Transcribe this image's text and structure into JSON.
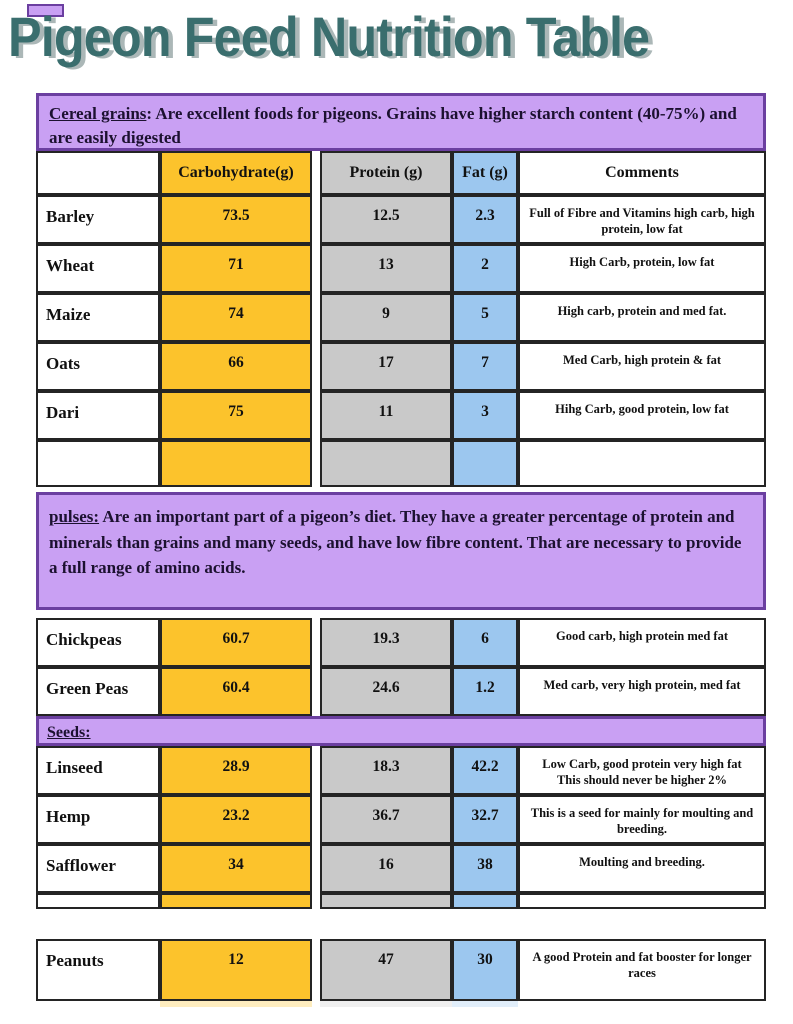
{
  "title": "Pigeon Feed Nutrition Table",
  "intro": {
    "cereal": {
      "label": "Cereal grains",
      "text": ": Are excellent foods for pigeons. Grains have higher starch content (40-75%) and are easily digested"
    },
    "pulses": {
      "label": "pulses:",
      "text": " Are an important part of a pigeon’s diet. They have a greater percentage of protein and minerals than grains and many seeds, and have low fibre content. That are necessary to provide a full range of amino acids."
    },
    "seeds": {
      "label": "Seeds:"
    }
  },
  "table": {
    "headers": {
      "food": "",
      "carb": "Carbohydrate(g)",
      "protein": "Protein (g)",
      "fat": "Fat (g)",
      "comments": "Comments"
    }
  },
  "rows": {
    "grains": [
      {
        "name": "Barley",
        "carb": "73.5",
        "protein": "12.5",
        "fat": "2.3",
        "comments": "Full of Fibre and Vitamins high carb, high protein, low fat"
      },
      {
        "name": "Wheat",
        "carb": "71",
        "protein": "13",
        "fat": "2",
        "comments": "High Carb, protein, low fat"
      },
      {
        "name": "Maize",
        "carb": "74",
        "protein": "9",
        "fat": "5",
        "comments": "High carb, protein and med fat."
      },
      {
        "name": "Oats",
        "carb": "66",
        "protein": "17",
        "fat": "7",
        "comments": "Med Carb, high protein & fat"
      },
      {
        "name": "Dari",
        "carb": "75",
        "protein": "11",
        "fat": "3",
        "comments": "Hihg Carb, good protein, low fat"
      }
    ],
    "pulses": [
      {
        "name": "Chickpeas",
        "carb": "60.7",
        "protein": "19.3",
        "fat": "6",
        "comments": "Good carb, high protein med fat"
      },
      {
        "name": "Green Peas",
        "carb": "60.4",
        "protein": "24.6",
        "fat": "1.2",
        "comments": "Med carb, very high protein, med fat"
      }
    ],
    "seeds": [
      {
        "name": "Linseed",
        "carb": "28.9",
        "protein": "18.3",
        "fat": "42.2",
        "comments": "Low Carb, good protein very high fat\nThis should never be higher 2%"
      },
      {
        "name": "Hemp",
        "carb": "23.2",
        "protein": "36.7",
        "fat": "32.7",
        "comments": "This is a seed for mainly for moulting and breeding."
      },
      {
        "name": "Safflower",
        "carb": "34",
        "protein": "16",
        "fat": "38",
        "comments": "Moulting and breeding."
      }
    ],
    "other": [
      {
        "name": "Peanuts",
        "carb": "12",
        "protein": "47",
        "fat": "30",
        "comments": "A good Protein and fat booster for longer races"
      }
    ]
  },
  "colors": {
    "carbohydrate_fill": "#FCC32C",
    "protein_fill": "#C9C9C9",
    "fat_fill": "#9CC7EF",
    "section_fill": "#C9A0F3",
    "section_border": "#6B3FA0",
    "title_color": "#3A6E6E"
  }
}
